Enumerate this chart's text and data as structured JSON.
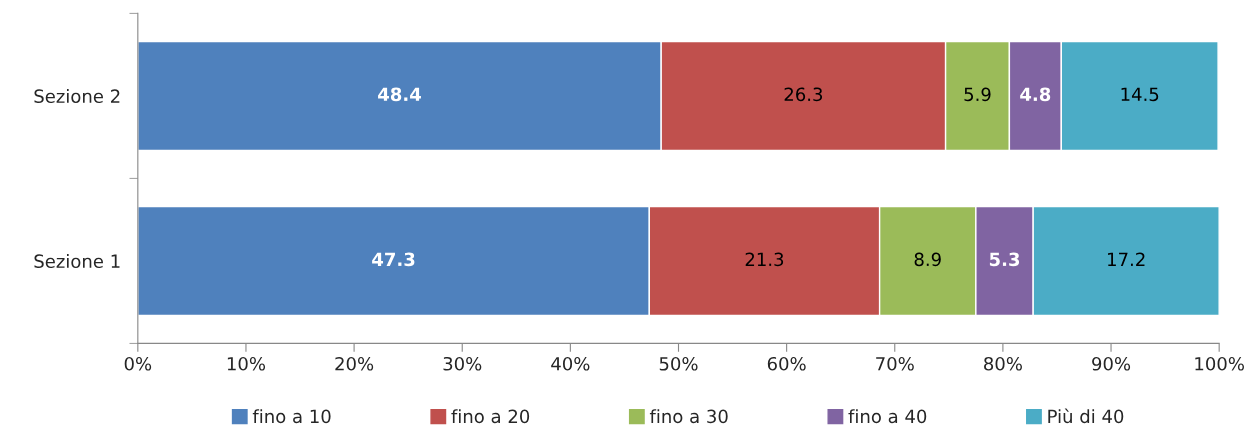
{
  "chart_data": {
    "type": "bar",
    "orientation": "horizontal",
    "stacked": true,
    "categories": [
      "Sezione 2",
      "Sezione 1"
    ],
    "series": [
      {
        "name": "fino a 10",
        "color": "#4f81bd",
        "values": [
          48.4,
          47.3
        ]
      },
      {
        "name": "fino a 20",
        "color": "#c0504d",
        "values": [
          26.3,
          21.3
        ]
      },
      {
        "name": "fino a 30",
        "color": "#9bbb59",
        "values": [
          5.9,
          8.9
        ]
      },
      {
        "name": "fino a 40",
        "color": "#8064a2",
        "values": [
          4.8,
          5.3
        ]
      },
      {
        "name": "Più di 40",
        "color": "#4bacc6",
        "values": [
          14.5,
          17.2
        ]
      }
    ],
    "xlim": [
      0,
      100
    ],
    "xticks": [
      {
        "value": 0,
        "label": "0%"
      },
      {
        "value": 10,
        "label": "10%"
      },
      {
        "value": 20,
        "label": "20%"
      },
      {
        "value": 30,
        "label": "30%"
      },
      {
        "value": 40,
        "label": "40%"
      },
      {
        "value": 50,
        "label": "50%"
      },
      {
        "value": 60,
        "label": "60%"
      },
      {
        "value": 70,
        "label": "70%"
      },
      {
        "value": 80,
        "label": "80%"
      },
      {
        "value": 90,
        "label": "90%"
      },
      {
        "value": 100,
        "label": "100%"
      }
    ],
    "data_labels": true,
    "legend": "bottom",
    "grid": false
  }
}
